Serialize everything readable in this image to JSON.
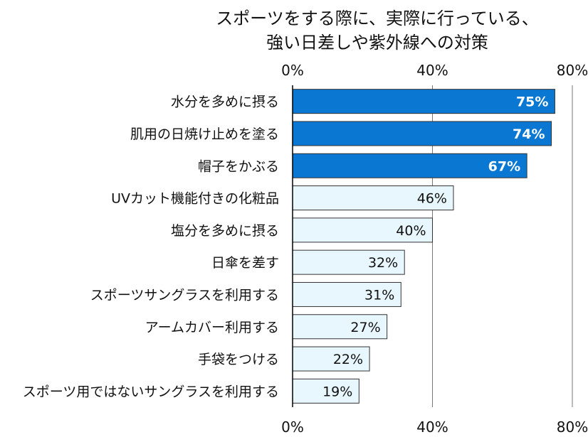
{
  "chart_data": {
    "type": "bar",
    "orientation": "horizontal",
    "title_line1": "スポーツをする際に、実際に行っている、",
    "title_line2": "強い日差しや紫外線への対策",
    "categories": [
      "水分を多めに摂る",
      "肌用の日焼け止めを塗る",
      "帽子をかぶる",
      "UVカット機能付きの化粧品",
      "塩分を多めに摂る",
      "日傘を差す",
      "スポーツサングラスを利用する",
      "アームカバー利用する",
      "手袋をつける",
      "スポーツ用ではないサングラスを利用する"
    ],
    "values": [
      75,
      74,
      67,
      46,
      40,
      32,
      31,
      27,
      22,
      19
    ],
    "value_labels": [
      "75%",
      "74%",
      "67%",
      "46%",
      "40%",
      "32%",
      "31%",
      "27%",
      "22%",
      "19%"
    ],
    "highlight_count": 3,
    "xlim": [
      0,
      80
    ],
    "ticks": [
      0,
      40,
      80
    ],
    "tick_labels": [
      "0%",
      "40%",
      "80%"
    ],
    "grid": true,
    "colors": {
      "highlight_fill": "#0a78d2",
      "highlight_label": "#ffffff",
      "normal_fill": "#e8f6fd",
      "normal_label": "#111111",
      "bar_stroke": "#333333",
      "axis": "#000000",
      "grid": "#777777"
    }
  }
}
